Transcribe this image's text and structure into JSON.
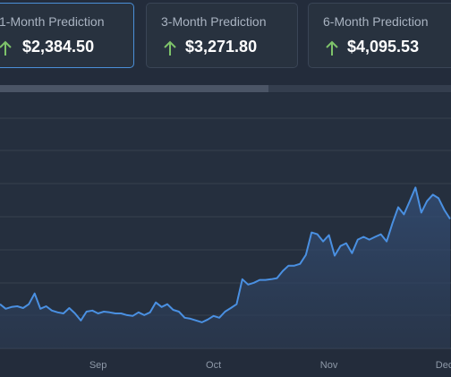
{
  "cards": [
    {
      "label": "1-Month Prediction",
      "value": "$2,384.50"
    },
    {
      "label": "3-Month Prediction",
      "value": "$3,271.80"
    },
    {
      "label": "6-Month Prediction",
      "value": "$4,095.53"
    }
  ],
  "chart_data": {
    "type": "line",
    "color": "#4a90e2",
    "ylim": [
      0,
      100
    ],
    "categories": [
      null,
      null,
      null,
      null,
      null,
      null,
      null,
      null,
      null,
      null,
      null,
      null,
      null,
      null,
      null,
      null,
      null,
      "Sep",
      null,
      null,
      null,
      null,
      null,
      null,
      null,
      null,
      null,
      null,
      null,
      null,
      null,
      null,
      null,
      null,
      null,
      null,
      null,
      "Oct",
      null,
      null,
      null,
      null,
      null,
      null,
      null,
      null,
      null,
      null,
      null,
      null,
      null,
      null,
      null,
      null,
      null,
      null,
      null,
      "Nov",
      null,
      null,
      null,
      null,
      null,
      null,
      null,
      null,
      null,
      null,
      null,
      null,
      null,
      null,
      null,
      null,
      null,
      null,
      null,
      "Dec",
      null
    ],
    "values": [
      17.3,
      15.5,
      16.2,
      16.5,
      15.8,
      17.3,
      21.5,
      15.5,
      16.5,
      14.8,
      14.1,
      13.7,
      15.8,
      13.7,
      10.9,
      14.4,
      14.8,
      13.7,
      14.4,
      14.1,
      13.7,
      13.7,
      13.0,
      12.7,
      14.1,
      13.0,
      14.1,
      18.0,
      16.2,
      17.3,
      15.1,
      14.4,
      12.0,
      11.6,
      10.9,
      10.2,
      11.3,
      12.7,
      12.0,
      14.4,
      15.8,
      17.3,
      27.1,
      25.0,
      25.7,
      26.8,
      26.8,
      27.1,
      27.5,
      30.3,
      32.4,
      32.4,
      33.1,
      36.6,
      45.4,
      44.7,
      41.9,
      44.4,
      36.3,
      40.1,
      41.2,
      37.3,
      42.6,
      43.7,
      42.6,
      43.7,
      44.7,
      41.9,
      48.9,
      55.3,
      52.5,
      57.7,
      63.0,
      53.2,
      57.7,
      60.2,
      58.8,
      54.2,
      50.7
    ]
  }
}
